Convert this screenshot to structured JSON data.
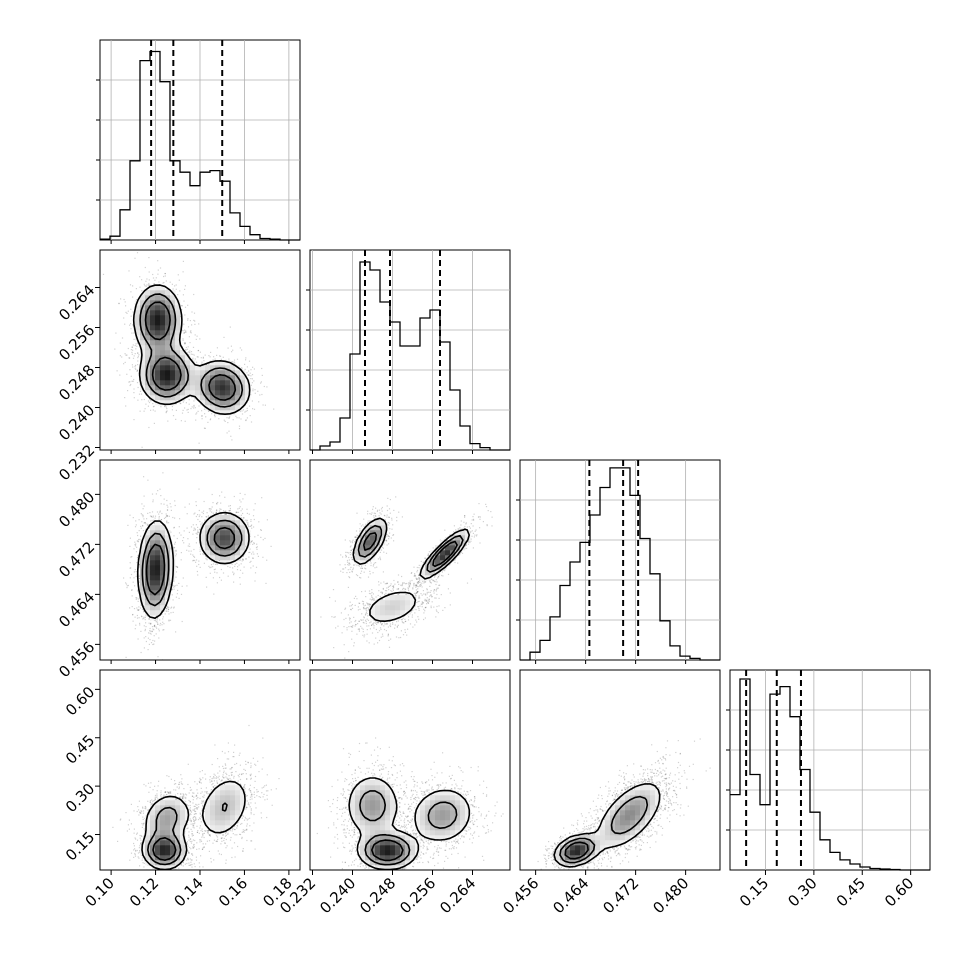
{
  "chart_data": {
    "type": "corner",
    "parameters": [
      {
        "range": [
          0.095,
          0.185
        ],
        "ticks": [
          "0.10",
          "0.12",
          "0.14",
          "0.16",
          "0.18"
        ],
        "quantiles": [
          0.118,
          0.128,
          0.15
        ],
        "histogram": {
          "bin_edges": [
            0.095,
            0.0995,
            0.104,
            0.1085,
            0.113,
            0.1175,
            0.122,
            0.1265,
            0.131,
            0.1355,
            0.14,
            0.1445,
            0.149,
            0.1535,
            0.158,
            0.1625,
            0.167,
            0.1715,
            0.176,
            0.1805,
            0.185
          ],
          "counts": [
            1,
            5,
            40,
            105,
            238,
            250,
            210,
            105,
            90,
            72,
            90,
            92,
            78,
            36,
            18,
            7,
            2,
            1,
            0,
            0
          ],
          "ymax": 260
        },
        "marginal_gridlines": [
          0.1,
          0.12,
          0.14,
          0.16,
          0.18
        ]
      },
      {
        "range": [
          0.2315,
          0.2715
        ],
        "ticks": [
          "0.232",
          "0.240",
          "0.248",
          "0.256",
          "0.264"
        ],
        "quantiles": [
          0.2425,
          0.2475,
          0.2575
        ],
        "histogram": {
          "bin_edges": [
            0.2315,
            0.2335,
            0.2355,
            0.2375,
            0.2395,
            0.2415,
            0.2435,
            0.2455,
            0.2475,
            0.2495,
            0.2515,
            0.2535,
            0.2555,
            0.2575,
            0.2595,
            0.2615,
            0.2635,
            0.2655,
            0.2675,
            0.2695,
            0.2715
          ],
          "counts": [
            0,
            5,
            10,
            40,
            120,
            235,
            225,
            185,
            160,
            130,
            130,
            165,
            175,
            135,
            75,
            30,
            8,
            3,
            0,
            0
          ],
          "ymax": 245
        },
        "marginal_gridlines": [
          0.232,
          0.24,
          0.248,
          0.256,
          0.264
        ]
      },
      {
        "range": [
          0.4535,
          0.4855
        ],
        "ticks": [
          "0.456",
          "0.464",
          "0.472",
          "0.480"
        ],
        "quantiles": [
          0.4646,
          0.47,
          0.4724
        ],
        "histogram": {
          "bin_edges": [
            0.4535,
            0.4551,
            0.4567,
            0.4583,
            0.4599,
            0.4615,
            0.4631,
            0.4647,
            0.4663,
            0.4679,
            0.4695,
            0.4711,
            0.4727,
            0.4743,
            0.4759,
            0.4775,
            0.4791,
            0.4807,
            0.4823,
            0.4839,
            0.4855
          ],
          "counts": [
            0,
            10,
            25,
            55,
            95,
            125,
            150,
            185,
            220,
            245,
            245,
            210,
            155,
            110,
            50,
            18,
            5,
            2,
            0,
            0
          ],
          "ymax": 250
        },
        "marginal_gridlines": [
          0.456,
          0.464,
          0.472,
          0.48
        ]
      },
      {
        "range": [
          0.04,
          0.66
        ],
        "ticks": [
          "0.15",
          "0.30",
          "0.45",
          "0.60"
        ],
        "quantiles": [
          0.09,
          0.185,
          0.26
        ],
        "histogram": {
          "bin_edges": [
            0.04,
            0.071,
            0.102,
            0.133,
            0.164,
            0.195,
            0.226,
            0.257,
            0.288,
            0.319,
            0.35,
            0.381,
            0.412,
            0.443,
            0.474,
            0.505,
            0.536,
            0.567,
            0.598,
            0.629,
            0.66
          ],
          "counts": [
            150,
            380,
            190,
            130,
            350,
            365,
            305,
            200,
            115,
            60,
            35,
            20,
            12,
            6,
            3,
            2,
            1,
            0,
            0,
            0
          ],
          "ymax": 390
        },
        "marginal_gridlines": [
          0.15,
          0.3,
          0.45,
          0.6
        ]
      }
    ],
    "joint": [
      {
        "x_param": 0,
        "y_param": 1,
        "modes": [
          {
            "x": 0.121,
            "y": 0.2575,
            "sx": 0.0055,
            "sy": 0.0036,
            "rho": 0.0,
            "w": 0.36
          },
          {
            "x": 0.125,
            "y": 0.2465,
            "sx": 0.0062,
            "sy": 0.003,
            "rho": 0.0,
            "w": 0.34
          },
          {
            "x": 0.15,
            "y": 0.244,
            "sx": 0.0065,
            "sy": 0.0028,
            "rho": -0.1,
            "w": 0.3
          }
        ]
      },
      {
        "x_param": 0,
        "y_param": 2,
        "modes": [
          {
            "x": 0.12,
            "y": 0.468,
            "sx": 0.004,
            "sy": 0.004,
            "rho": 0.1,
            "w": 0.6
          },
          {
            "x": 0.151,
            "y": 0.473,
            "sx": 0.006,
            "sy": 0.0022,
            "rho": 0.0,
            "w": 0.4
          }
        ]
      },
      {
        "x_param": 1,
        "y_param": 2,
        "modes": [
          {
            "x": 0.2435,
            "y": 0.4725,
            "sx": 0.0018,
            "sy": 0.002,
            "rho": 0.6,
            "w": 0.32
          },
          {
            "x": 0.2585,
            "y": 0.4705,
            "sx": 0.0025,
            "sy": 0.002,
            "rho": 0.85,
            "w": 0.38
          },
          {
            "x": 0.248,
            "y": 0.462,
            "sx": 0.004,
            "sy": 0.002,
            "rho": 0.4,
            "w": 0.3
          }
        ]
      },
      {
        "x_param": 0,
        "y_param": 3,
        "modes": [
          {
            "x": 0.124,
            "y": 0.1,
            "sx": 0.005,
            "sy": 0.03,
            "rho": 0.0,
            "w": 0.35
          },
          {
            "x": 0.125,
            "y": 0.2,
            "sx": 0.006,
            "sy": 0.045,
            "rho": 0.2,
            "w": 0.3
          },
          {
            "x": 0.151,
            "y": 0.235,
            "sx": 0.007,
            "sy": 0.06,
            "rho": 0.3,
            "w": 0.35
          }
        ]
      },
      {
        "x_param": 1,
        "y_param": 3,
        "modes": [
          {
            "x": 0.247,
            "y": 0.1,
            "sx": 0.003,
            "sy": 0.03,
            "rho": 0.0,
            "w": 0.35
          },
          {
            "x": 0.244,
            "y": 0.24,
            "sx": 0.003,
            "sy": 0.055,
            "rho": 0.0,
            "w": 0.32
          },
          {
            "x": 0.258,
            "y": 0.21,
            "sx": 0.0035,
            "sy": 0.05,
            "rho": 0.1,
            "w": 0.33
          }
        ]
      },
      {
        "x_param": 2,
        "y_param": 3,
        "modes": [
          {
            "x": 0.4625,
            "y": 0.1,
            "sx": 0.0018,
            "sy": 0.025,
            "rho": 0.3,
            "w": 0.35
          },
          {
            "x": 0.471,
            "y": 0.21,
            "sx": 0.003,
            "sy": 0.06,
            "rho": 0.6,
            "w": 0.65
          }
        ]
      }
    ],
    "contour_levels": [
      0.6,
      0.35,
      0.15
    ],
    "colors": {
      "line": "#000000",
      "grid": "#b0b0b0",
      "points": "#000000",
      "fill_light": "#f3f3f3",
      "fill_dark": "#000000"
    }
  }
}
